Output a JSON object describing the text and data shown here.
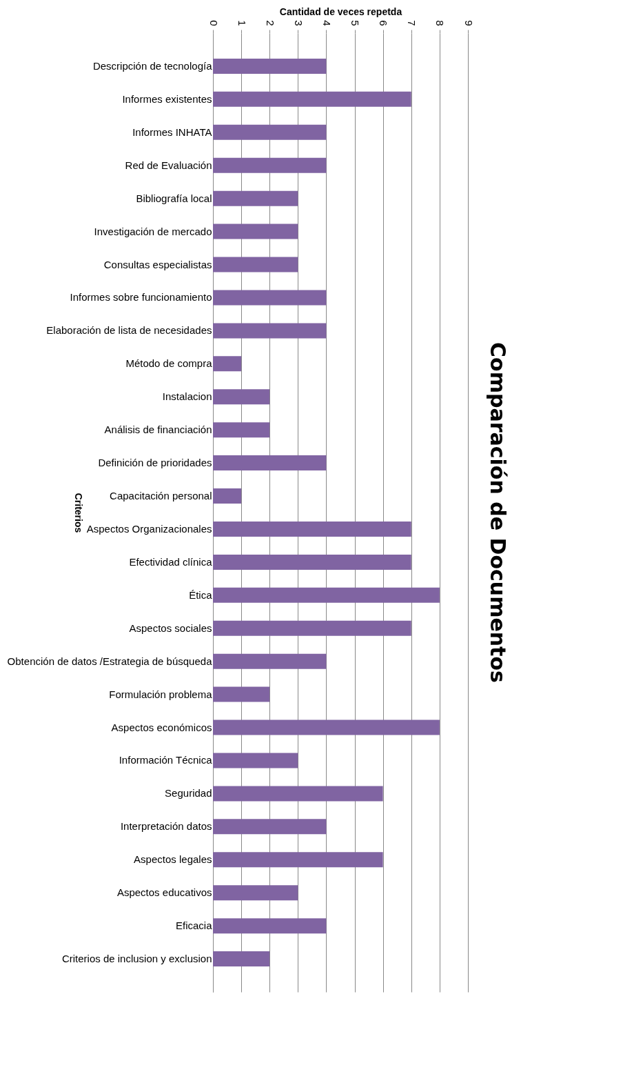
{
  "chart_data": {
    "type": "bar",
    "orientation": "horizontal",
    "title": "Comparación de Documentos",
    "xlabel": "Cantidad de veces repetda",
    "ylabel": "Criterios",
    "categories": [
      "Descripción de tecnología",
      "Informes existentes",
      "Informes INHATA",
      "Red de Evaluación",
      "Bibliografía local",
      "Investigación de mercado",
      "Consultas especialistas",
      "Informes sobre funcionamiento",
      "Elaboración de lista de necesidades",
      "Método de compra",
      "Instalacion",
      "Análisis de financiación",
      "Definición de prioridades",
      "Capacitación personal",
      "Aspectos Organizacionales",
      "Efectividad clínica",
      "Ética",
      "Aspectos sociales",
      "Obtención de datos /Estrategia de búsqueda",
      "Formulación problema",
      "Aspectos económicos",
      "Información Técnica",
      "Seguridad",
      "Interpretación datos",
      "Aspectos legales",
      "Aspectos educativos",
      "Eficacia",
      "Criterios de inclusion y exclusion"
    ],
    "values": [
      4,
      7,
      4,
      4,
      3,
      3,
      3,
      4,
      4,
      1,
      2,
      2,
      4,
      1,
      7,
      7,
      8,
      7,
      4,
      2,
      8,
      3,
      6,
      4,
      6,
      3,
      4,
      2
    ],
    "color": "#8064a2",
    "xlim": [
      0,
      9
    ],
    "xticks": [
      0,
      1,
      2,
      3,
      4,
      5,
      6,
      7,
      8,
      9
    ],
    "grid": "x"
  }
}
